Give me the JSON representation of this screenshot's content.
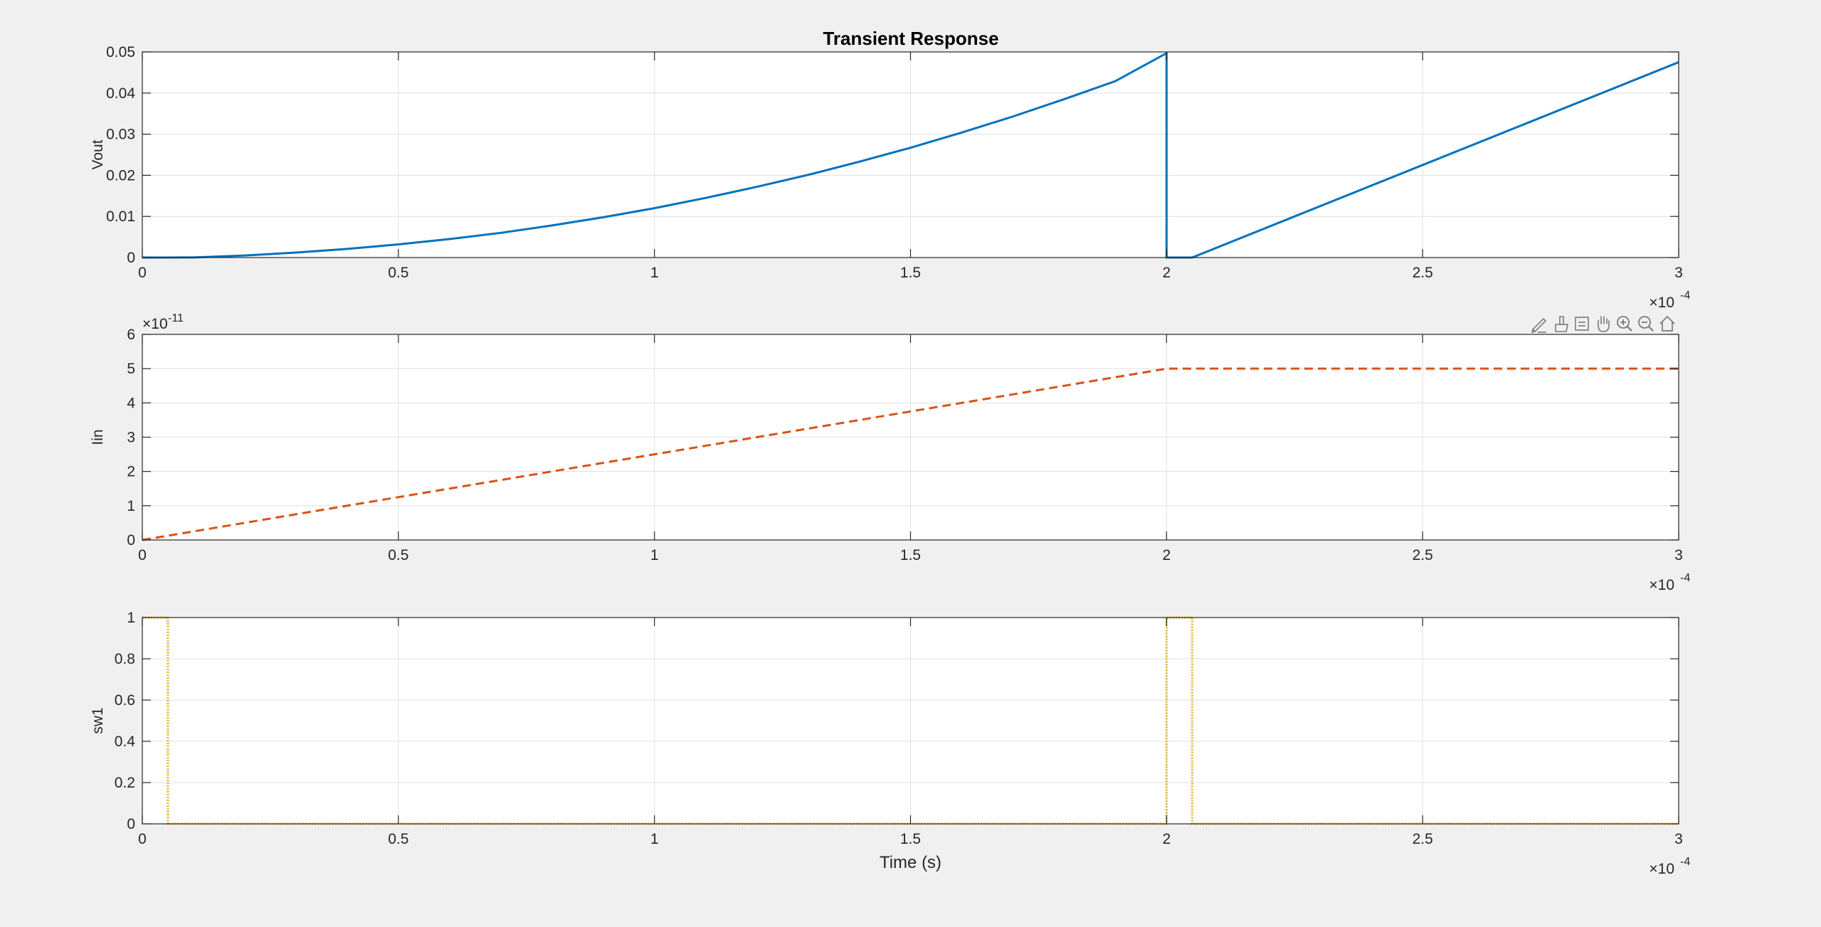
{
  "figure": {
    "background": "#f0f0f0",
    "title": "Transient Response"
  },
  "toolbar": {
    "icons": [
      "edit-icon",
      "brush-icon",
      "datatip-icon",
      "pan-icon",
      "zoom-in-icon",
      "zoom-out-icon",
      "home-icon"
    ]
  },
  "chart_data": [
    {
      "type": "line",
      "title": "Transient Response",
      "xlabel": "",
      "ylabel": "Vout",
      "xlim": [
        0,
        0.0003
      ],
      "ylim": [
        0,
        0.05
      ],
      "x_exponent_label": "×10",
      "x_exponent": "-4",
      "y_exponent": "",
      "xtick_labels": [
        "0",
        "0.5",
        "1",
        "1.5",
        "2",
        "2.5",
        "3"
      ],
      "ytick_labels": [
        "0",
        "0.01",
        "0.02",
        "0.03",
        "0.04",
        "0.05"
      ],
      "grid": true,
      "series": [
        {
          "color": "#0072BD",
          "style": "solid",
          "x": [
            0,
            5e-06,
            1e-05,
            2e-05,
            3e-05,
            4e-05,
            5e-05,
            6e-05,
            7e-05,
            8e-05,
            9e-05,
            0.0001,
            0.00011,
            0.00012,
            0.00013,
            0.00014,
            0.00015,
            0.00016,
            0.00017,
            0.00018,
            0.00019,
            0.0002,
            0.0002,
            0.00020001,
            0.000205,
            0.00025,
            0.0003
          ],
          "y": [
            0,
            0,
            3e-05,
            0.0005,
            0.0012,
            0.0021,
            0.0032,
            0.0045,
            0.006,
            0.0078,
            0.0098,
            0.012,
            0.0145,
            0.0172,
            0.0201,
            0.0233,
            0.0267,
            0.0304,
            0.0343,
            0.0385,
            0.0429,
            0.0497,
            0.0,
            0.0,
            0.0,
            0.0225,
            0.0475
          ]
        }
      ]
    },
    {
      "type": "line",
      "title": "",
      "xlabel": "",
      "ylabel": "Iin",
      "xlim": [
        0,
        0.0003
      ],
      "ylim": [
        0,
        6e-11
      ],
      "x_exponent_label": "×10",
      "x_exponent": "-4",
      "y_exponent_label": "×10",
      "y_exponent": "-11",
      "xtick_labels": [
        "0",
        "0.5",
        "1",
        "1.5",
        "2",
        "2.5",
        "3"
      ],
      "ytick_labels": [
        "0",
        "1",
        "2",
        "3",
        "4",
        "5",
        "6"
      ],
      "grid": true,
      "series": [
        {
          "color": "#D95319",
          "style": "dashed",
          "x": [
            0,
            0.0002,
            0.0003
          ],
          "y": [
            0,
            5e-11,
            5e-11
          ]
        }
      ]
    },
    {
      "type": "line",
      "title": "",
      "xlabel": "Time (s)",
      "ylabel": "sw1",
      "xlim": [
        0,
        0.0003
      ],
      "ylim": [
        0,
        1
      ],
      "x_exponent_label": "×10",
      "x_exponent": "-4",
      "y_exponent": "",
      "xtick_labels": [
        "0",
        "0.5",
        "1",
        "1.5",
        "2",
        "2.5",
        "3"
      ],
      "ytick_labels": [
        "0",
        "0.2",
        "0.4",
        "0.6",
        "0.8",
        "1"
      ],
      "grid": true,
      "series": [
        {
          "color": "#EDB120",
          "style": "dotted",
          "x": [
            0,
            5e-06,
            5e-06,
            0.0002,
            0.0002,
            0.000205,
            0.000205,
            0.0003
          ],
          "y": [
            1,
            1,
            0,
            0,
            1,
            1,
            0,
            0
          ]
        }
      ]
    }
  ]
}
